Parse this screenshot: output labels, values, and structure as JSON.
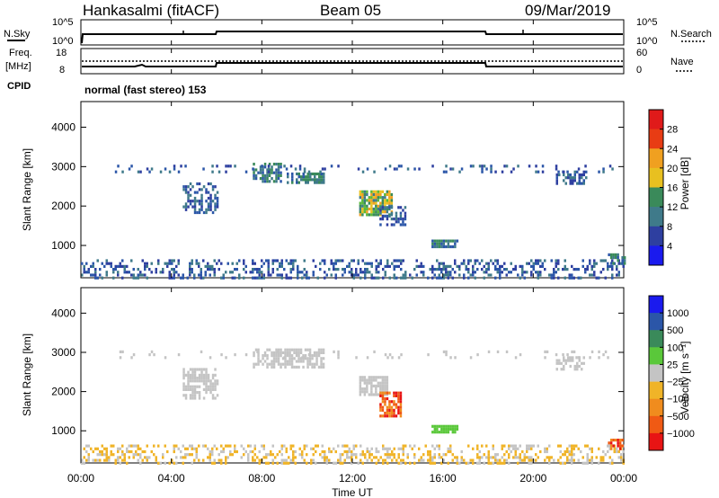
{
  "header": {
    "station": "Hankasalmi (fitACF)",
    "beam": "Beam 05",
    "date": "09/Mar/2019"
  },
  "top_panels": {
    "nsky_label": "N.Sky",
    "nsearch_label": "N.Search",
    "freq_label_1": "Freq.",
    "freq_label_2": "[MHz]",
    "nave_label": "Nave",
    "cpid_label": "CPID",
    "cpid_text": "normal (fast stereo) 153",
    "noise_ticks": [
      "10^5",
      "10^0"
    ],
    "freq_ticks": [
      "18",
      "8"
    ],
    "nave_ticks": [
      "60",
      "0"
    ]
  },
  "colors": {
    "power_scale": [
      "#1a1aee",
      "#2e3fa0",
      "#2b56a8",
      "#3f7a8a",
      "#3a8a5a",
      "#5ab83a",
      "#e8c020",
      "#f0a020",
      "#f07818",
      "#e83c14",
      "#e01a1a"
    ],
    "velocity_scale": [
      "#e81414",
      "#f05a14",
      "#f08c1e",
      "#f0b428",
      "#c4c4c4",
      "#5ac83a",
      "#3a8a5a",
      "#2b56a8",
      "#1a1aee"
    ]
  },
  "chart_data": [
    {
      "type": "heatmap",
      "name": "power",
      "ylabel": "Slant Range [km]",
      "xlabel": "Time UT",
      "x_ticks": [
        "00:00",
        "04:00",
        "08:00",
        "12:00",
        "16:00",
        "20:00",
        "00:00"
      ],
      "x_range_hours": [
        0,
        24
      ],
      "y_ticks": [
        1000,
        2000,
        3000,
        4000
      ],
      "y_range_km": [
        180,
        4650
      ],
      "colorbar_label": "Power [dB]",
      "colorbar_ticks": [
        "4",
        "8",
        "12",
        "16",
        "20",
        "24",
        "28"
      ],
      "echo_regions": [
        {
          "t0": 0.0,
          "t1": 24.0,
          "r0": 180,
          "r1": 650,
          "level": "low",
          "density": 0.35
        },
        {
          "t0": 4.5,
          "t1": 6.0,
          "r0": 1800,
          "r1": 2600,
          "level": "low",
          "density": 0.5
        },
        {
          "t0": 7.6,
          "t1": 8.8,
          "r0": 2600,
          "r1": 3100,
          "level": "mid",
          "density": 0.7
        },
        {
          "t0": 9.0,
          "t1": 10.7,
          "r0": 2600,
          "r1": 2850,
          "level": "mid",
          "density": 0.7
        },
        {
          "t0": 12.3,
          "t1": 13.7,
          "r0": 1800,
          "r1": 2400,
          "level": "high",
          "density": 0.8
        },
        {
          "t0": 13.2,
          "t1": 14.3,
          "r0": 1500,
          "r1": 2000,
          "level": "low",
          "density": 0.5
        },
        {
          "t0": 15.5,
          "t1": 16.6,
          "r0": 950,
          "r1": 1150,
          "level": "mid",
          "density": 0.85
        },
        {
          "t0": 1.5,
          "t1": 23.5,
          "r0": 2900,
          "r1": 3050,
          "level": "low",
          "density": 0.15
        },
        {
          "t0": 21.0,
          "t1": 22.3,
          "r0": 2550,
          "r1": 2900,
          "level": "low",
          "density": 0.5
        },
        {
          "t0": 23.3,
          "t1": 24.0,
          "r0": 550,
          "r1": 800,
          "level": "mid",
          "density": 0.5
        }
      ]
    },
    {
      "type": "heatmap",
      "name": "velocity",
      "ylabel": "Slant Range [km]",
      "xlabel": "Time UT",
      "x_ticks": [
        "00:00",
        "04:00",
        "08:00",
        "12:00",
        "16:00",
        "20:00",
        "00:00"
      ],
      "x_range_hours": [
        0,
        24
      ],
      "y_ticks": [
        1000,
        2000,
        3000,
        4000
      ],
      "y_range_km": [
        180,
        4650
      ],
      "colorbar_label": "Velocity [m s⁻¹]",
      "colorbar_ticks": [
        "1000",
        "500",
        "100",
        "25",
        "−25",
        "−100",
        "−500",
        "−1000"
      ],
      "echo_regions": [
        {
          "t0": 0.0,
          "t1": 24.0,
          "r0": 180,
          "r1": 650,
          "level": "near_zero_neg",
          "density": 0.35
        },
        {
          "t0": 4.5,
          "t1": 6.0,
          "r0": 1800,
          "r1": 2600,
          "level": "near_zero",
          "density": 0.5
        },
        {
          "t0": 7.6,
          "t1": 10.7,
          "r0": 2600,
          "r1": 3100,
          "level": "near_zero",
          "density": 0.6
        },
        {
          "t0": 12.3,
          "t1": 13.5,
          "r0": 1900,
          "r1": 2400,
          "level": "near_zero",
          "density": 0.8
        },
        {
          "t0": 13.2,
          "t1": 14.1,
          "r0": 1400,
          "r1": 2000,
          "level": "neg",
          "density": 0.7
        },
        {
          "t0": 15.5,
          "t1": 16.6,
          "r0": 950,
          "r1": 1150,
          "level": "pos",
          "density": 0.85
        },
        {
          "t0": 1.5,
          "t1": 23.5,
          "r0": 2900,
          "r1": 3050,
          "level": "near_zero",
          "density": 0.12
        },
        {
          "t0": 21.0,
          "t1": 22.3,
          "r0": 2550,
          "r1": 2900,
          "level": "near_zero",
          "density": 0.5
        },
        {
          "t0": 23.3,
          "t1": 24.0,
          "r0": 550,
          "r1": 800,
          "level": "neg",
          "density": 0.5
        }
      ]
    }
  ]
}
